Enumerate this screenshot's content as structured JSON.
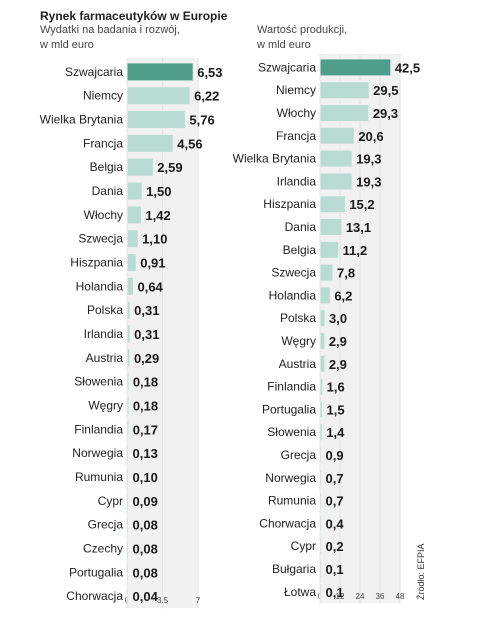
{
  "title": "Rynek farmaceutyków w Europie",
  "source": "Źródło: EFPIA",
  "colors": {
    "highlight": "#4e9e8a",
    "bar": "#b9dcd2",
    "bar_edge": "#eef1ef",
    "track": "#f1f1f1"
  },
  "chart_data": [
    {
      "type": "bar",
      "orientation": "horizontal",
      "subtitle": [
        "Wydatki na badania i rozwój,",
        "w mld euro"
      ],
      "categories": [
        "Szwajcaria",
        "Niemcy",
        "Wielka Brytania",
        "Francja",
        "Belgia",
        "Dania",
        "Włochy",
        "Szwecja",
        "Hiszpania",
        "Holandia",
        "Polska",
        "Irlandia",
        "Austria",
        "Słowenia",
        "Węgry",
        "Finlandia",
        "Norwegia",
        "Rumunia",
        "Cypr",
        "Grecja",
        "Czechy",
        "Portugalia",
        "Chorwacja"
      ],
      "values": [
        6.53,
        6.22,
        5.76,
        4.56,
        2.59,
        1.5,
        1.42,
        1.1,
        0.91,
        0.64,
        0.31,
        0.31,
        0.29,
        0.18,
        0.18,
        0.17,
        0.13,
        0.1,
        0.09,
        0.08,
        0.08,
        0.08,
        0.04
      ],
      "value_labels": [
        "6,53",
        "6,22",
        "5,76",
        "4,56",
        "2,59",
        "1,50",
        "1,42",
        "1,10",
        "0,91",
        "0,64",
        "0,31",
        "0,31",
        "0,29",
        "0,18",
        "0,18",
        "0,17",
        "0,13",
        "0,10",
        "0,09",
        "0,08",
        "0,08",
        "0,08",
        "0,04"
      ],
      "xlim": [
        0,
        7
      ],
      "ticks": [
        0,
        3.5,
        7
      ],
      "tick_labels": [
        "0",
        "3.5",
        "7"
      ],
      "highlight_index": 0
    },
    {
      "type": "bar",
      "orientation": "horizontal",
      "subtitle": [
        "Wartość produkcji,",
        "w mld euro"
      ],
      "categories": [
        "Szwajcaria",
        "Niemcy",
        "Włochy",
        "Francja",
        "Wielka Brytania",
        "Irlandia",
        "Hiszpania",
        "Dania",
        "Belgia",
        "Szwecja",
        "Holandia",
        "Polska",
        "Węgry",
        "Austria",
        "Finlandia",
        "Portugalia",
        "Słowenia",
        "Grecja",
        "Norwegia",
        "Rumunia",
        "Chorwacja",
        "Cypr",
        "Bułgaria",
        "Łotwa"
      ],
      "values": [
        42.5,
        29.5,
        29.3,
        20.6,
        19.3,
        19.3,
        15.2,
        13.1,
        11.2,
        7.8,
        6.2,
        3.0,
        2.9,
        2.9,
        1.6,
        1.5,
        1.4,
        0.9,
        0.7,
        0.7,
        0.4,
        0.2,
        0.1,
        0.1
      ],
      "value_labels": [
        "42,5",
        "29,5",
        "29,3",
        "20,6",
        "19,3",
        "19,3",
        "15,2",
        "13,1",
        "11,2",
        "7,8",
        "6,2",
        "3,0",
        "2,9",
        "2,9",
        "1,6",
        "1,5",
        "1,4",
        "0,9",
        "0,7",
        "0,7",
        "0,4",
        "0,2",
        "0,1",
        "0,1"
      ],
      "xlim": [
        0,
        48
      ],
      "ticks": [
        0,
        12,
        24,
        36,
        48
      ],
      "tick_labels": [
        "0",
        "12",
        "24",
        "36",
        "48"
      ],
      "highlight_index": 0
    }
  ]
}
